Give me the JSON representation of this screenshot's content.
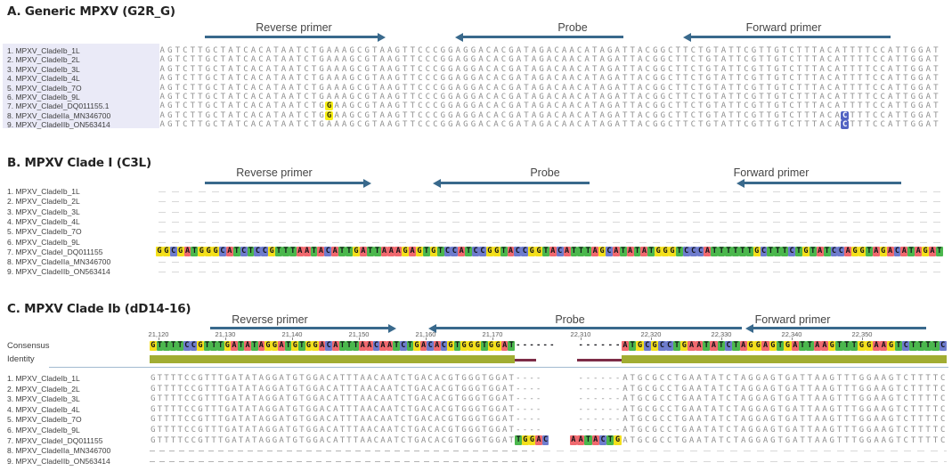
{
  "figure": {
    "type": "sequence-alignment-figure",
    "organism_rows": 9
  },
  "colors": {
    "base_A": "#f0696e",
    "base_T": "#4bb74d",
    "base_G": "#f3df1c",
    "base_C": "#6e7ccd",
    "snp_yellow": "#f6ee15",
    "snp_blue": "#5163c3",
    "arrow": "#39698c",
    "identity_high": "#a1ad33",
    "identity_low": "#7d2c47",
    "name_panel_bg": "#eaeaf7",
    "sequence_text": "#8f8f8f",
    "divider": "#a2bad0"
  },
  "panels": [
    {
      "key": "A",
      "title": "A. Generic MPXV (G2R_G)",
      "annotations": [
        "Reverse primer",
        "Probe",
        "Forward primer"
      ],
      "rows": [
        {
          "name": "1. MPXV_CladeIb_1L",
          "seq": "AGTCTTGCTATCACATAATCTGAAAGCGTAAGTTCCCGGAGGACACGATAGACAACATAGATTACGGCTTCTGTATTCGTTGTCTTTACATTTTCCATTGGAT"
        },
        {
          "name": "2. MPXV_CladeIb_2L",
          "seq": "AGTCTTGCTATCACATAATCTGAAAGCGTAAGTTCCCGGAGGACACGATAGACAACATAGATTACGGCTTCTGTATTCGTTGTCTTTACATTTTCCATTGGAT"
        },
        {
          "name": "3. MPXV_CladeIb_3L",
          "seq": "AGTCTTGCTATCACATAATCTGAAAGCGTAAGTTCCCGGAGGACACGATAGACAACATAGATTACGGCTTCTGTATTCGTTGTCTTTACATTTTCCATTGGAT"
        },
        {
          "name": "4. MPXV_CladeIb_4L",
          "seq": "AGTCTTGCTATCACATAATCTGAAAGCGTAAGTTCCCGGAGGACACGATAGACAACATAGATTACGGCTTCTGTATTCGTTGTCTTTACATTTTCCATTGGAT"
        },
        {
          "name": "5. MPXV_CladeIb_7O",
          "seq": "AGTCTTGCTATCACATAATCTGAAAGCGTAAGTTCCCGGAGGACACGATAGACAACATAGATTACGGCTTCTGTATTCGTTGTCTTTACATTTTCCATTGGAT"
        },
        {
          "name": "6. MPXV_CladeIb_9L",
          "seq": "AGTCTTGCTATCACATAATCTGAAAGCGTAAGTTCCCGGAGGACACGATAGACAACATAGATTACGGCTTCTGTATTCGTTGTCTTTACATTTTCCATTGGAT"
        },
        {
          "name": "7. MPXV_CladeI_DQ011155.1",
          "seq": "AGTCTTGCTATCACATAATCTGGAAGCGTAAGTTCCCGGAGGACACGATAGACAACATAGATTACGGCTTCTGTATTCGTTGTCTTTACATTTTCCATTGGAT",
          "highlights": [
            {
              "pos": 23,
              "style": "yellow"
            }
          ]
        },
        {
          "name": "8. MPXV_CladeIIa_MN346700",
          "seq": "AGTCTTGCTATCACATAATCTGGAAGCGTAAGTTCCCGGAGGACACGATAGACAACATAGATTACGGCTTCTGTATTCGTTGTCTTTACACTTTCCATTGGAT",
          "highlights": [
            {
              "pos": 23,
              "style": "yellow"
            },
            {
              "pos": 91,
              "style": "blue"
            }
          ]
        },
        {
          "name": "9. MPXV_CladeIIb_ON563414",
          "seq": "AGTCTTGCTATCACATAATCTGAAAGCGTAAGTTCCCGGAGGACACGATAGACAACATAGATTACGGCTTCTGTATTCGTTGTCTTTACACTTTCCATTGGAT",
          "highlights": [
            {
              "pos": 91,
              "style": "blue"
            }
          ]
        }
      ]
    },
    {
      "key": "B",
      "title": "B. MPXV Clade I (C3L)",
      "annotations": [
        "Reverse primer",
        "Probe",
        "Forward primer"
      ],
      "rows": [
        {
          "name": "1. MPXV_CladeIb_1L",
          "gap": true
        },
        {
          "name": "2. MPXV_CladeIb_2L",
          "gap": true
        },
        {
          "name": "3. MPXV_CladeIb_3L",
          "gap": true
        },
        {
          "name": "4. MPXV_CladeIb_4L",
          "gap": true
        },
        {
          "name": "5. MPXV_CladeIb_7O",
          "gap": true
        },
        {
          "name": "6. MPXV_CladeIb_9L",
          "gap": true
        },
        {
          "name": "7. MPXV_CladeI_DQ011155",
          "colored_seq": "GGCGATGGGCATCTCCGTTTAATACATTGATTAAAGAGTGTCCATCCGGTACCGGTACATTTAGCATATATGGGTCCCATTTTTTGCTTTCTGTATCCAGGTAGACATAGAT"
        },
        {
          "name": "8. MPXV_CladeIIa_MN346700",
          "gap": true
        },
        {
          "name": "9. MPXV_CladeIIb_ON563414",
          "gap": true
        }
      ]
    },
    {
      "key": "C",
      "title": "C. MPXV Clade Ib (dD14-16)",
      "annotations": [
        "Reverse primer",
        "Probe",
        "Forward primer"
      ],
      "ruler_left": [
        "21,120",
        "21,130",
        "21,140",
        "21,150",
        "21,160",
        "21,170"
      ],
      "ruler_right": [
        "22,310",
        "22,320",
        "22,330",
        "22,340",
        "22,350"
      ],
      "consensus_label": "Consensus",
      "identity_label": "Identity",
      "consensus_left": "GTTTTCCGTTTGATATAGGATGTGGACATTTAACAATCTGACACGTGGGTGGAT",
      "consensus_right": "ATGCGCCTGAATATCTAGGAGTGATTAAGTTTGGAAGTCTTTTC",
      "rows": [
        {
          "name": "1. MPXV_CladeIb_1L"
        },
        {
          "name": "2. MPXV_CladeIb_2L"
        },
        {
          "name": "3. MPXV_CladeIb_3L"
        },
        {
          "name": "4. MPXV_CladeIb_4L"
        },
        {
          "name": "5. MPXV_CladeIb_7O"
        },
        {
          "name": "6. MPXV_CladeIb_9L"
        },
        {
          "name": "7. MPXV_CladeI_DQ011155",
          "left_insert": "TGGAC",
          "right_insert": "AATACTG"
        },
        {
          "name": "8. MPXV_CladeIIa_MN346700",
          "gap": true
        },
        {
          "name": "9. MPXV_CladeIIb_ON563414",
          "gap": true
        }
      ]
    }
  ]
}
